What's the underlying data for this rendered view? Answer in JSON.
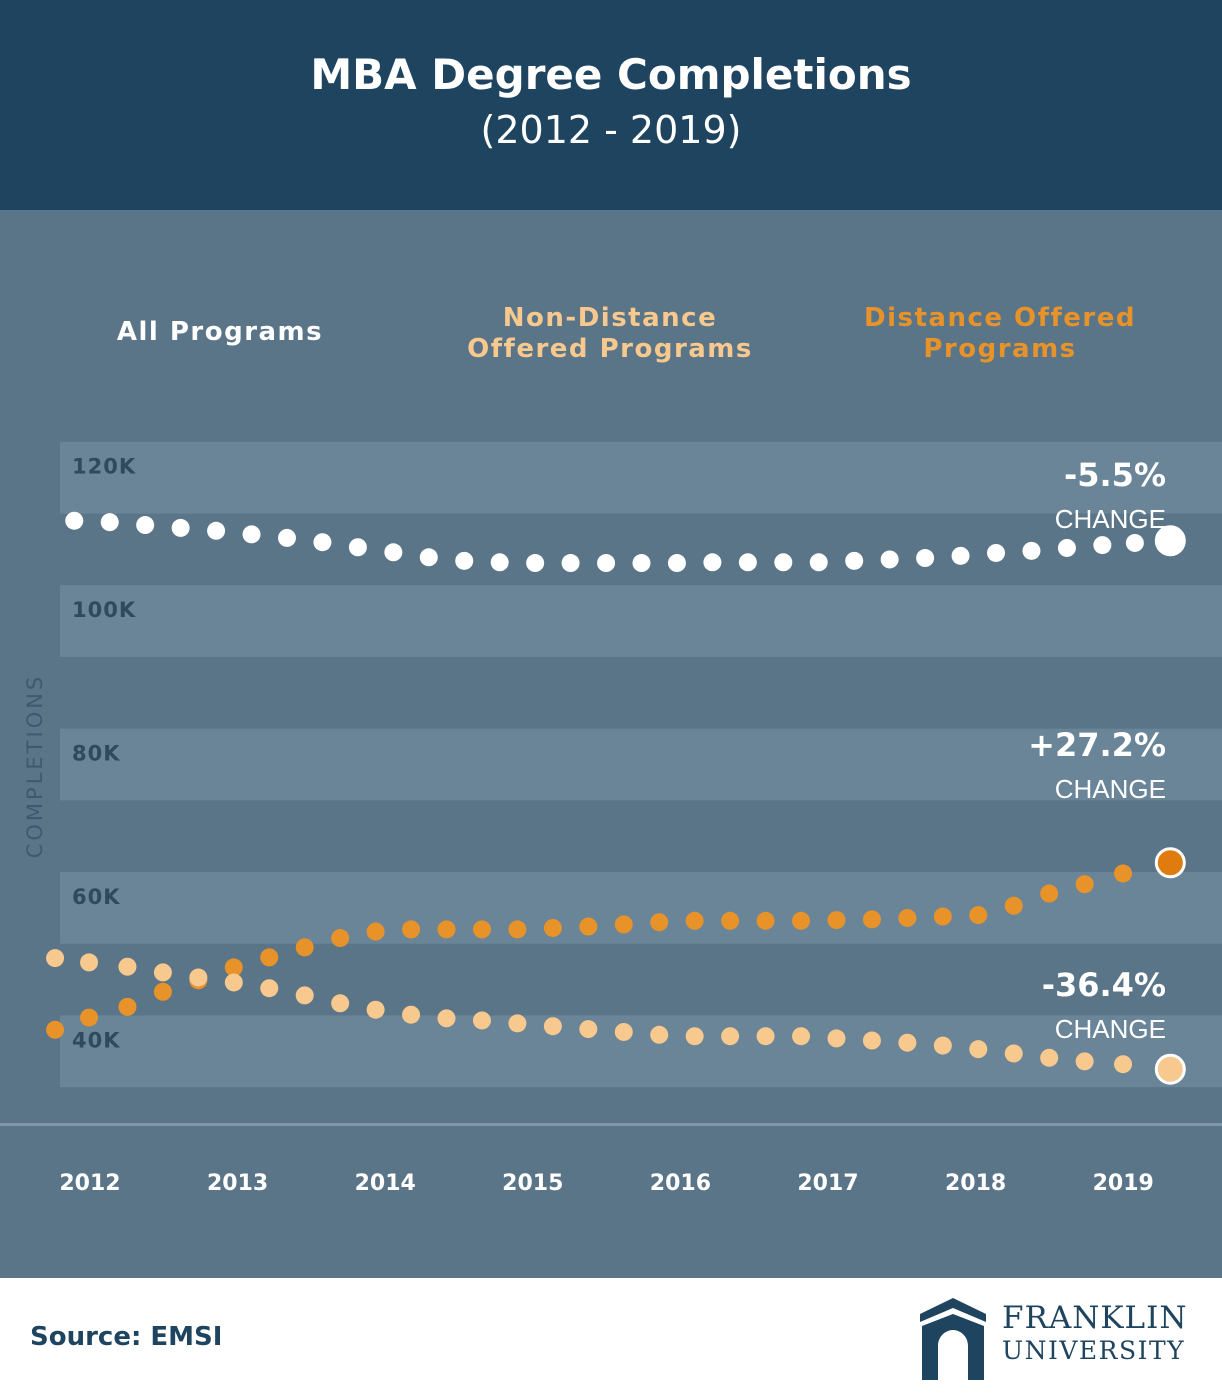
{
  "header": {
    "title": "MBA Degree Completions",
    "subtitle": "(2012 - 2019)"
  },
  "legend": [
    {
      "label": "All Programs",
      "color": "#ffffff"
    },
    {
      "label": "Non-Distance Offered Programs",
      "color": "#f7c98e"
    },
    {
      "label": "Distance Offered Programs",
      "color": "#e8922a"
    }
  ],
  "chart_data": {
    "type": "scatter",
    "ylabel": "COMPLETIONS",
    "ylim": [
      30000,
      130000
    ],
    "y_ticks": [
      "120K",
      "100K",
      "80K",
      "60K",
      "40K"
    ],
    "y_tick_values": [
      120000,
      100000,
      80000,
      60000,
      40000
    ],
    "x_tick_labels": [
      "2012",
      "2013",
      "2014",
      "2015",
      "2016",
      "2017",
      "2018",
      "2019"
    ],
    "xlim": [
      2012,
      2019.25
    ],
    "series": [
      {
        "name": "All Programs",
        "color": "#ffffff",
        "change_value": "-5.5%",
        "change_label": "CHANGE",
        "points": [
          [
            2011.88,
            114000
          ],
          [
            2012.12,
            113800
          ],
          [
            2012.36,
            113400
          ],
          [
            2012.6,
            113000
          ],
          [
            2012.84,
            112600
          ],
          [
            2013.08,
            112100
          ],
          [
            2013.32,
            111600
          ],
          [
            2013.56,
            111000
          ],
          [
            2013.8,
            110300
          ],
          [
            2014.04,
            109600
          ],
          [
            2014.28,
            108900
          ],
          [
            2014.52,
            108400
          ],
          [
            2014.76,
            108200
          ],
          [
            2015.0,
            108100
          ],
          [
            2015.24,
            108100
          ],
          [
            2015.48,
            108100
          ],
          [
            2015.72,
            108100
          ],
          [
            2015.96,
            108100
          ],
          [
            2016.2,
            108200
          ],
          [
            2016.44,
            108200
          ],
          [
            2016.68,
            108200
          ],
          [
            2016.92,
            108200
          ],
          [
            2017.16,
            108400
          ],
          [
            2017.4,
            108600
          ],
          [
            2017.64,
            108800
          ],
          [
            2017.88,
            109100
          ],
          [
            2018.12,
            109500
          ],
          [
            2018.36,
            109800
          ],
          [
            2018.6,
            110200
          ],
          [
            2018.84,
            110600
          ],
          [
            2019.06,
            110900
          ],
          [
            2019.3,
            111200
          ]
        ],
        "final_point": [
          2019.3,
          111200
        ]
      },
      {
        "name": "Distance Offered Programs",
        "color": "#e8922a",
        "final_color": "#e07b10",
        "change_value": "+27.2%",
        "change_label": "CHANGE",
        "points": [
          [
            2011.75,
            43000
          ],
          [
            2011.98,
            44700
          ],
          [
            2012.24,
            46200
          ],
          [
            2012.48,
            48300
          ],
          [
            2012.72,
            49900
          ],
          [
            2012.96,
            51700
          ],
          [
            2013.2,
            53100
          ],
          [
            2013.44,
            54500
          ],
          [
            2013.68,
            55800
          ],
          [
            2013.92,
            56700
          ],
          [
            2014.16,
            57000
          ],
          [
            2014.4,
            57000
          ],
          [
            2014.64,
            57000
          ],
          [
            2014.88,
            57000
          ],
          [
            2015.12,
            57200
          ],
          [
            2015.36,
            57400
          ],
          [
            2015.6,
            57700
          ],
          [
            2015.84,
            58000
          ],
          [
            2016.08,
            58200
          ],
          [
            2016.32,
            58200
          ],
          [
            2016.56,
            58200
          ],
          [
            2016.8,
            58200
          ],
          [
            2017.04,
            58300
          ],
          [
            2017.28,
            58400
          ],
          [
            2017.52,
            58600
          ],
          [
            2017.76,
            58800
          ],
          [
            2018.0,
            59000
          ],
          [
            2018.24,
            60300
          ],
          [
            2018.48,
            62000
          ],
          [
            2018.72,
            63300
          ],
          [
            2018.98,
            64800
          ],
          [
            2019.3,
            66300
          ]
        ],
        "final_point": [
          2019.3,
          66300
        ]
      },
      {
        "name": "Non-Distance Offered Programs",
        "color": "#f7c98e",
        "change_value": "-36.4%",
        "change_label": "CHANGE",
        "points": [
          [
            2011.75,
            53000
          ],
          [
            2011.98,
            52400
          ],
          [
            2012.24,
            51800
          ],
          [
            2012.48,
            51000
          ],
          [
            2012.72,
            50300
          ],
          [
            2012.96,
            49600
          ],
          [
            2013.2,
            48800
          ],
          [
            2013.44,
            47800
          ],
          [
            2013.68,
            46700
          ],
          [
            2013.92,
            45800
          ],
          [
            2014.16,
            45100
          ],
          [
            2014.4,
            44600
          ],
          [
            2014.64,
            44300
          ],
          [
            2014.88,
            43900
          ],
          [
            2015.12,
            43500
          ],
          [
            2015.36,
            43100
          ],
          [
            2015.6,
            42700
          ],
          [
            2015.84,
            42300
          ],
          [
            2016.08,
            42100
          ],
          [
            2016.32,
            42100
          ],
          [
            2016.56,
            42100
          ],
          [
            2016.8,
            42100
          ],
          [
            2017.04,
            41800
          ],
          [
            2017.28,
            41500
          ],
          [
            2017.52,
            41200
          ],
          [
            2017.76,
            40800
          ],
          [
            2018.0,
            40300
          ],
          [
            2018.24,
            39700
          ],
          [
            2018.48,
            39100
          ],
          [
            2018.72,
            38600
          ],
          [
            2018.98,
            38200
          ],
          [
            2019.3,
            37500
          ]
        ],
        "final_point": [
          2019.3,
          37500
        ]
      }
    ]
  },
  "footer": {
    "source": "Source: EMSI",
    "logo_line1": "FRANKLIN",
    "logo_line2": "UNIVERSITY"
  }
}
